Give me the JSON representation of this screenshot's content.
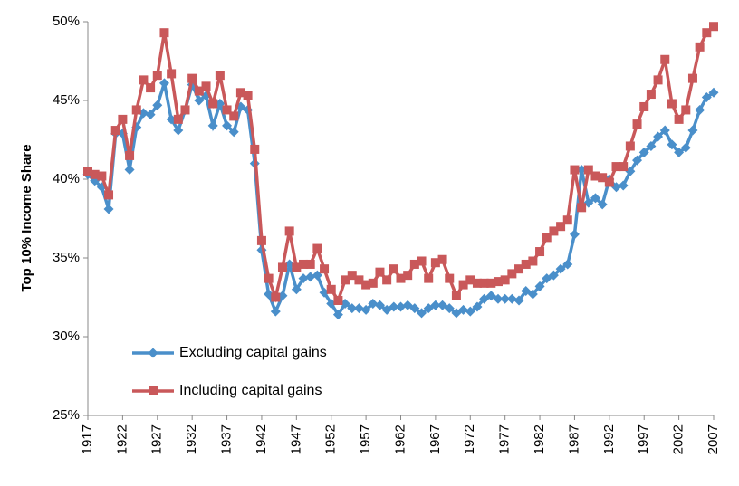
{
  "chart_data": {
    "type": "line",
    "y_axis_label": "Top 10% Income Share",
    "x": [
      1917,
      1918,
      1919,
      1920,
      1921,
      1922,
      1923,
      1924,
      1925,
      1926,
      1927,
      1928,
      1929,
      1930,
      1931,
      1932,
      1933,
      1934,
      1935,
      1936,
      1937,
      1938,
      1939,
      1940,
      1941,
      1942,
      1943,
      1944,
      1945,
      1946,
      1947,
      1948,
      1949,
      1950,
      1951,
      1952,
      1953,
      1954,
      1955,
      1956,
      1957,
      1958,
      1959,
      1960,
      1961,
      1962,
      1963,
      1964,
      1965,
      1966,
      1967,
      1968,
      1969,
      1970,
      1971,
      1972,
      1973,
      1974,
      1975,
      1976,
      1977,
      1978,
      1979,
      1980,
      1981,
      1982,
      1983,
      1984,
      1985,
      1986,
      1987,
      1988,
      1989,
      1990,
      1991,
      1992,
      1993,
      1994,
      1995,
      1996,
      1997,
      1998,
      1999,
      2000,
      2001,
      2002,
      2003,
      2004,
      2005,
      2006,
      2007
    ],
    "series": [
      {
        "name": "Excluding capital gains",
        "color": "#4a8fca",
        "marker": "diamond",
        "values": [
          40.3,
          39.9,
          39.5,
          38.1,
          42.9,
          42.9,
          40.6,
          43.3,
          44.2,
          44.1,
          44.7,
          46.1,
          43.8,
          43.1,
          44.4,
          46.0,
          45.0,
          45.3,
          43.4,
          44.8,
          43.4,
          43.0,
          44.6,
          44.4,
          41.0,
          35.5,
          32.7,
          31.6,
          32.6,
          34.6,
          33.0,
          33.7,
          33.8,
          33.9,
          32.8,
          32.1,
          31.4,
          32.1,
          31.8,
          31.8,
          31.7,
          32.1,
          32.0,
          31.7,
          31.9,
          31.9,
          32.0,
          31.8,
          31.5,
          31.8,
          32.0,
          32.0,
          31.8,
          31.5,
          31.7,
          31.6,
          31.9,
          32.4,
          32.6,
          32.4,
          32.4,
          32.4,
          32.3,
          32.9,
          32.7,
          33.2,
          33.7,
          33.9,
          34.3,
          34.6,
          36.5,
          40.6,
          38.5,
          38.8,
          38.4,
          40.0,
          39.5,
          39.6,
          40.5,
          41.2,
          41.7,
          42.1,
          42.7,
          43.1,
          42.2,
          41.7,
          42.0,
          43.1,
          44.4,
          45.2,
          45.5
        ]
      },
      {
        "name": "Including capital gains",
        "color": "#c9585a",
        "marker": "square",
        "values": [
          40.5,
          40.3,
          40.2,
          39.0,
          43.1,
          43.8,
          41.5,
          44.4,
          46.3,
          45.8,
          46.6,
          49.3,
          46.7,
          43.8,
          44.4,
          46.4,
          45.6,
          45.9,
          44.8,
          46.6,
          44.4,
          44.0,
          45.5,
          45.3,
          41.9,
          36.1,
          33.7,
          32.5,
          34.4,
          36.7,
          34.4,
          34.6,
          34.6,
          35.6,
          34.3,
          33.0,
          32.3,
          33.6,
          33.9,
          33.6,
          33.3,
          33.4,
          34.1,
          33.6,
          34.3,
          33.7,
          33.9,
          34.6,
          34.8,
          33.7,
          34.7,
          34.9,
          33.7,
          32.6,
          33.3,
          33.6,
          33.4,
          33.4,
          33.4,
          33.5,
          33.6,
          34.0,
          34.3,
          34.6,
          34.8,
          35.4,
          36.3,
          36.7,
          37.0,
          37.4,
          40.6,
          38.2,
          40.6,
          40.2,
          40.1,
          39.8,
          40.8,
          40.8,
          42.1,
          43.5,
          44.6,
          45.4,
          46.3,
          47.6,
          44.8,
          43.8,
          44.4,
          46.4,
          48.4,
          49.3,
          49.7
        ]
      }
    ],
    "xlim": [
      1917,
      2007
    ],
    "xticks": [
      1917,
      1922,
      1927,
      1932,
      1937,
      1942,
      1947,
      1952,
      1957,
      1962,
      1967,
      1972,
      1977,
      1982,
      1987,
      1992,
      1997,
      2002,
      2007
    ],
    "ylim": [
      25,
      50
    ],
    "yticks": [
      {
        "value": 25,
        "label": "25%"
      },
      {
        "value": 30,
        "label": "30%"
      },
      {
        "value": 35,
        "label": "35%"
      },
      {
        "value": 40,
        "label": "40%"
      },
      {
        "value": 45,
        "label": "45%"
      },
      {
        "value": 50,
        "label": "50%"
      }
    ],
    "grid": false,
    "legend": "lower left"
  }
}
